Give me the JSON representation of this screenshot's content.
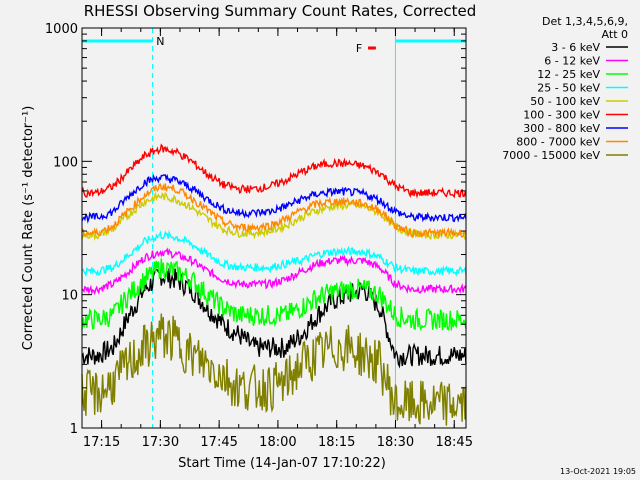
{
  "chart_data": {
    "type": "line",
    "title": "RHESSI Observing Summary Count Rates, Corrected",
    "xlabel": "Start Time (14-Jan-07 17:10:22)",
    "ylabel": "Corrected Count Rate (s⁻¹ detector⁻¹)",
    "yscale": "log",
    "ylim": [
      1,
      1000
    ],
    "xlim": [
      "17:10",
      "18:48"
    ],
    "x_ticks": [
      "17:15",
      "17:30",
      "17:45",
      "18:00",
      "18:15",
      "18:30",
      "18:45"
    ],
    "y_ticks": [
      "1",
      "10",
      "100",
      "1000"
    ],
    "legend_header": [
      "Det 1,3,4,5,6,9,",
      "Att 0"
    ],
    "legend_position": "outside-right",
    "flag_labels": [
      {
        "text": "N",
        "color": "#00ffff"
      },
      {
        "text": "F",
        "color": "#ff0000"
      }
    ],
    "night_markers": [
      {
        "start": "17:10",
        "end": "17:28",
        "color": "#00ffff"
      },
      {
        "start": "18:30",
        "end": "18:48",
        "color": "#00ffff"
      }
    ],
    "flare_marker": {
      "start": "18:23",
      "end": "18:25",
      "color": "#ff0000"
    },
    "x_points": [
      "17:10",
      "17:14",
      "17:18",
      "17:22",
      "17:26",
      "17:30",
      "17:34",
      "17:38",
      "17:42",
      "17:46",
      "17:50",
      "17:54",
      "17:58",
      "18:02",
      "18:06",
      "18:10",
      "18:14",
      "18:18",
      "18:22",
      "18:26",
      "18:30",
      "18:34",
      "18:38",
      "18:42",
      "18:46",
      "18:48"
    ],
    "series": [
      {
        "name": "3 - 6 keV",
        "color": "#000000",
        "values": [
          3.5,
          3.5,
          4,
          7,
          11,
          14,
          13,
          11,
          8,
          6,
          5,
          4,
          4,
          4,
          5,
          7,
          9,
          10,
          11,
          8,
          3.5,
          3.5,
          3.5,
          3.5,
          3.5,
          3.5
        ]
      },
      {
        "name": "6 - 12 keV",
        "color": "#ff00ff",
        "values": [
          11,
          11,
          12,
          15,
          19,
          21,
          20,
          18,
          15,
          13,
          12,
          12,
          12,
          13,
          15,
          17,
          18,
          18,
          18,
          16,
          12,
          11,
          11,
          11,
          11,
          11
        ]
      },
      {
        "name": "12 - 25 keV",
        "color": "#00ff00",
        "values": [
          6.5,
          6.5,
          7,
          10,
          13,
          16,
          15,
          13,
          10,
          8,
          7,
          7,
          7,
          7,
          8,
          9.5,
          10.5,
          11,
          11,
          10,
          7,
          6.5,
          6.5,
          6.5,
          6.5,
          6.5
        ]
      },
      {
        "name": "25 - 50 keV",
        "color": "#00ffff",
        "values": [
          15,
          15,
          16,
          20,
          25,
          28,
          27,
          24,
          20,
          17,
          16,
          16,
          16,
          17,
          18,
          20,
          21,
          21,
          21,
          19,
          16,
          15,
          15,
          15,
          15,
          15
        ]
      },
      {
        "name": "50 - 100 keV",
        "color": "#cccc00",
        "values": [
          28,
          28,
          31,
          40,
          50,
          55,
          52,
          45,
          37,
          31,
          29,
          29,
          30,
          33,
          38,
          43,
          46,
          47,
          46,
          41,
          32,
          29,
          28,
          28,
          28,
          28
        ]
      },
      {
        "name": "100 - 300 keV",
        "color": "#ff0000",
        "values": [
          58,
          58,
          65,
          85,
          110,
          125,
          118,
          100,
          80,
          67,
          62,
          62,
          65,
          72,
          83,
          93,
          97,
          96,
          92,
          82,
          65,
          58,
          58,
          58,
          58,
          58
        ]
      },
      {
        "name": "300 - 800 keV",
        "color": "#0000ff",
        "values": [
          38,
          38,
          42,
          55,
          70,
          76,
          72,
          63,
          52,
          44,
          41,
          41,
          42,
          46,
          52,
          57,
          59,
          59,
          57,
          51,
          42,
          38,
          38,
          38,
          38,
          38
        ]
      },
      {
        "name": "800 - 7000 keV",
        "color": "#ff8800",
        "values": [
          29,
          29,
          33,
          43,
          56,
          65,
          62,
          53,
          43,
          35,
          32,
          32,
          33,
          37,
          43,
          48,
          50,
          50,
          48,
          43,
          33,
          29,
          29,
          29,
          29,
          29
        ]
      },
      {
        "name": "7000 - 15000 keV",
        "color": "#808000",
        "values": [
          1.8,
          1.8,
          2.2,
          3,
          4,
          5,
          4.5,
          3.5,
          3,
          2.5,
          2,
          2,
          2,
          2.2,
          3,
          3.5,
          4,
          4,
          3.5,
          3,
          1.5,
          1.5,
          1.5,
          1.5,
          1.5,
          1.5
        ]
      }
    ]
  },
  "footer": {
    "timestamp": "13-Oct-2021 19:05"
  }
}
